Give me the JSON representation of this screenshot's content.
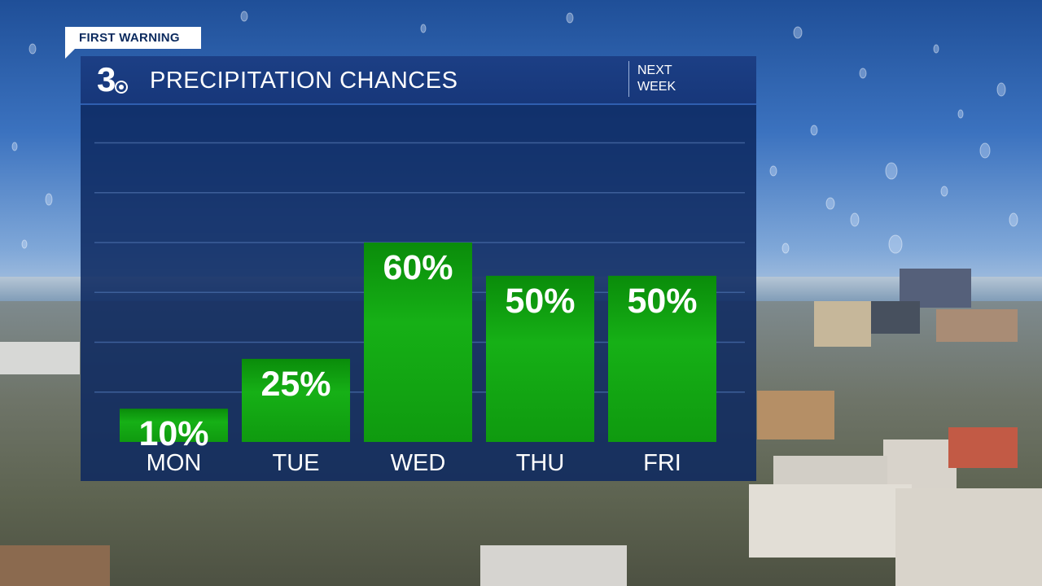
{
  "tag": "FIRST WARNING",
  "header": {
    "logo_text": "3",
    "title": "PRECIPITATION CHANCES",
    "subtitle_line1": "NEXT",
    "subtitle_line2": "WEEK"
  },
  "colors": {
    "panel": "#0c285f",
    "header": "#1c3f85",
    "bar_top": "#0b8f0b",
    "bar_mid": "#18b418",
    "grid": "#3d5f9a"
  },
  "chart_data": {
    "type": "bar",
    "title": "PRECIPITATION CHANCES",
    "categories": [
      "MON",
      "TUE",
      "WED",
      "THU",
      "FRI"
    ],
    "values": [
      10,
      25,
      60,
      50,
      50
    ],
    "value_labels": [
      "10%",
      "25%",
      "60%",
      "50%",
      "50%"
    ],
    "unit": "%",
    "ylim": [
      0,
      90
    ],
    "grid": true,
    "legend": "none"
  }
}
